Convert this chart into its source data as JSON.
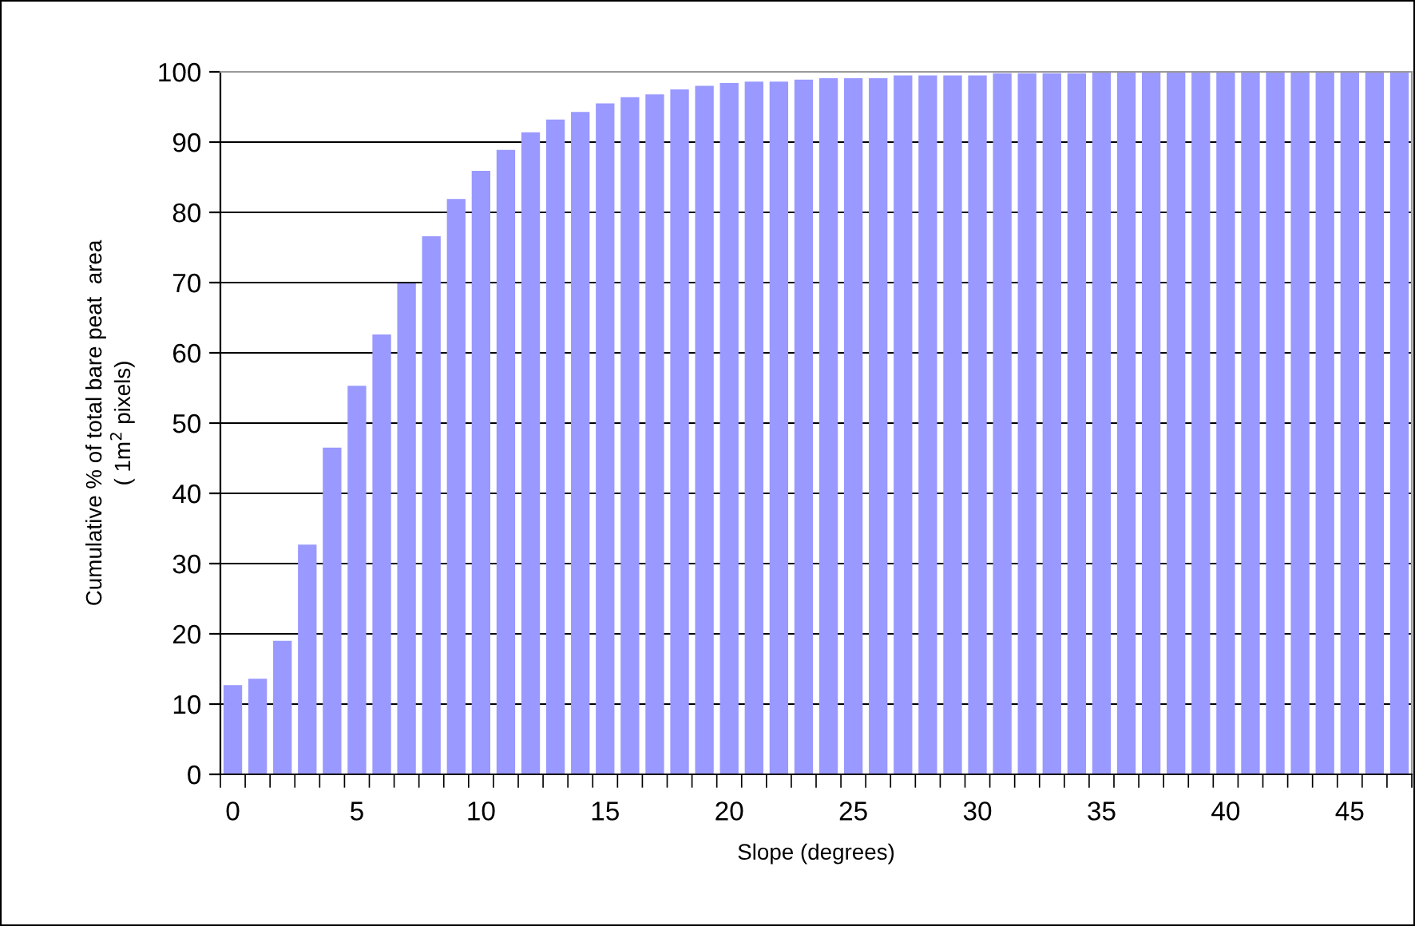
{
  "chart_data": {
    "type": "bar",
    "xlabel": "Slope (degrees)",
    "ylabel": "Cumulative % of total bare peat  area\n( 1m$^{2}$ pixels)",
    "categories": [
      "0",
      null,
      null,
      null,
      null,
      "5",
      null,
      null,
      null,
      null,
      "10",
      null,
      null,
      null,
      null,
      "15",
      null,
      null,
      null,
      null,
      "20",
      null,
      null,
      null,
      null,
      "25",
      null,
      null,
      null,
      null,
      "30",
      null,
      null,
      null,
      null,
      "35",
      null,
      null,
      null,
      null,
      "40",
      null,
      null,
      null,
      null,
      "45",
      null,
      null
    ],
    "values": [
      12.7,
      13.6,
      19.0,
      32.7,
      46.5,
      55.3,
      62.6,
      69.9,
      76.6,
      81.9,
      85.9,
      88.9,
      91.4,
      93.2,
      94.3,
      95.5,
      96.4,
      96.8,
      97.5,
      98.0,
      98.4,
      98.6,
      98.6,
      98.9,
      99.1,
      99.1,
      99.1,
      99.5,
      99.5,
      99.5,
      99.5,
      99.8,
      99.8,
      99.8,
      99.8,
      100,
      100,
      100,
      100,
      100,
      100,
      100,
      100,
      100,
      100,
      100,
      100,
      100
    ],
    "color": "#9999ff",
    "ylim": [
      0,
      100
    ],
    "yticks": [
      0,
      10,
      20,
      30,
      40,
      50,
      60,
      70,
      80,
      90,
      100
    ],
    "grid": "y"
  }
}
